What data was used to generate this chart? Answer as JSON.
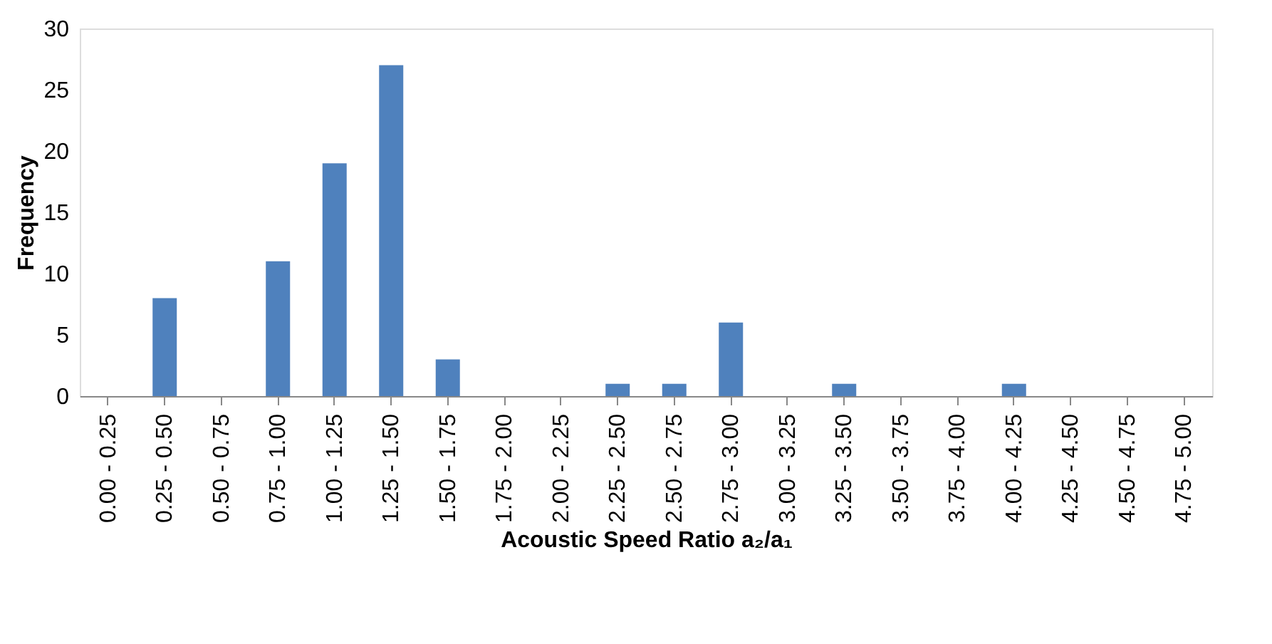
{
  "chart_data": {
    "type": "bar",
    "categories": [
      "0.00 - 0.25",
      "0.25 - 0.50",
      "0.50 - 0.75",
      "0.75 - 1.00",
      "1.00 - 1.25",
      "1.25 - 1.50",
      "1.50 - 1.75",
      "1.75 - 2.00",
      "2.00 - 2.25",
      "2.25 - 2.50",
      "2.50 - 2.75",
      "2.75 - 3.00",
      "3.00 - 3.25",
      "3.25 - 3.50",
      "3.50 - 3.75",
      "3.75 - 4.00",
      "4.00 - 4.25",
      "4.25 - 4.50",
      "4.50 - 4.75",
      "4.75 - 5.00"
    ],
    "values": [
      0,
      8,
      0,
      11,
      19,
      27,
      3,
      0,
      0,
      1,
      1,
      6,
      0,
      1,
      0,
      0,
      1,
      0,
      0,
      0
    ],
    "color": "#4f81bd",
    "xlabel": "Acoustic Speed Ratio a₂/a₁",
    "ylabel": "Frequency",
    "ylim": [
      0,
      30
    ],
    "yticks": [
      0,
      5,
      10,
      15,
      20,
      25,
      30
    ],
    "grid": false
  }
}
